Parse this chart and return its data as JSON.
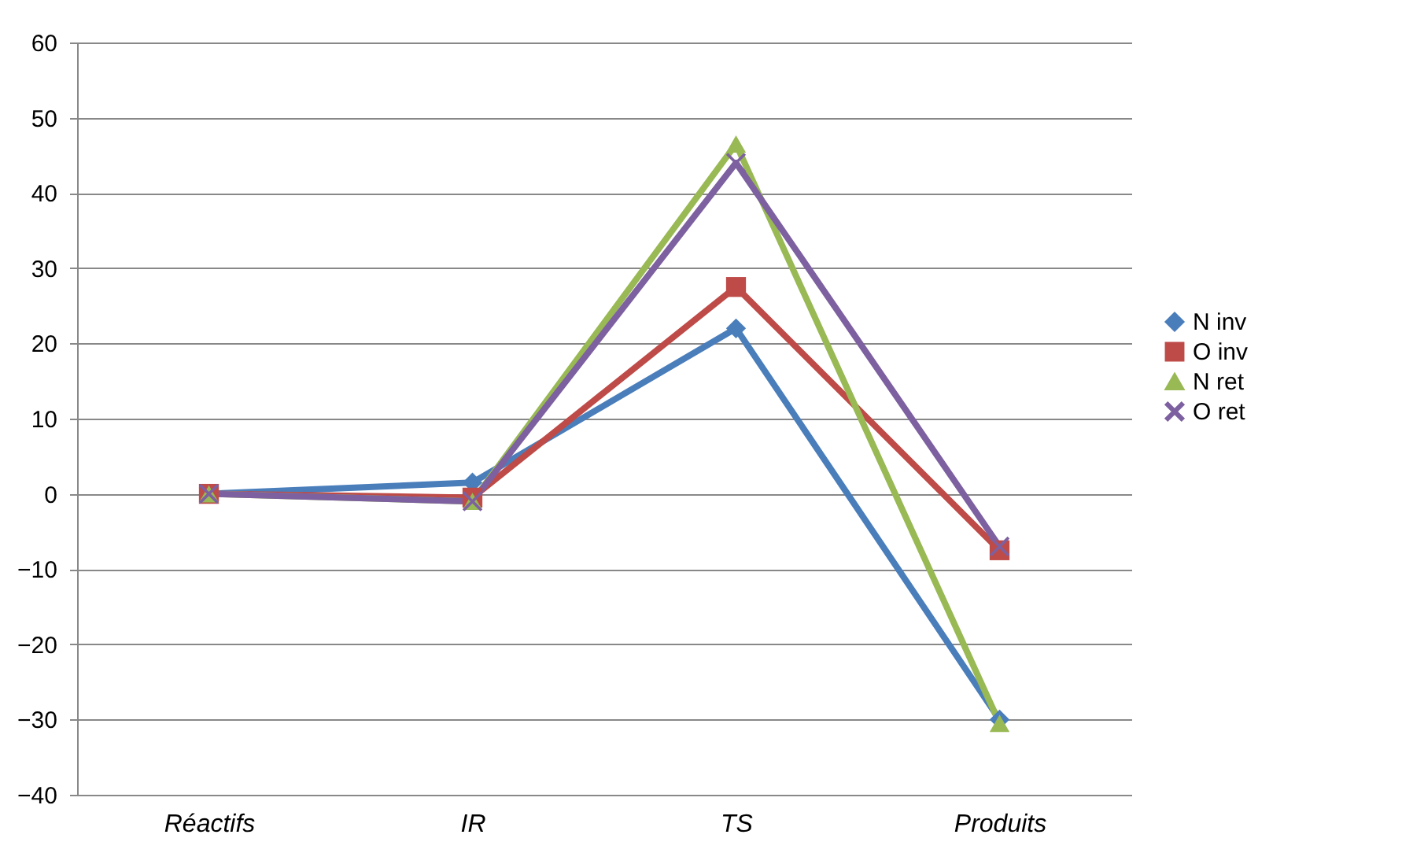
{
  "chart_data": {
    "type": "line",
    "categories": [
      "Réactifs",
      "IR",
      "TS",
      "Produits"
    ],
    "series": [
      {
        "name": "N inv",
        "color": "#4a7ebb",
        "marker": "diamond",
        "values": [
          0,
          1.5,
          22,
          -30
        ]
      },
      {
        "name": "O inv",
        "color": "#be4b48",
        "marker": "square",
        "values": [
          0,
          -0.5,
          27.5,
          -7.5
        ]
      },
      {
        "name": "N ret",
        "color": "#98b954",
        "marker": "triangle",
        "values": [
          0,
          -1,
          46.5,
          -30.5
        ]
      },
      {
        "name": "O ret",
        "color": "#7d60a0",
        "marker": "cross",
        "values": [
          0,
          -1,
          44,
          -7
        ]
      }
    ],
    "ylim": [
      -40,
      60
    ],
    "yticks": [
      -40,
      -30,
      -20,
      -10,
      0,
      10,
      20,
      30,
      40,
      50,
      60
    ],
    "grid": "y",
    "legend": "right",
    "line_style": "solid"
  }
}
